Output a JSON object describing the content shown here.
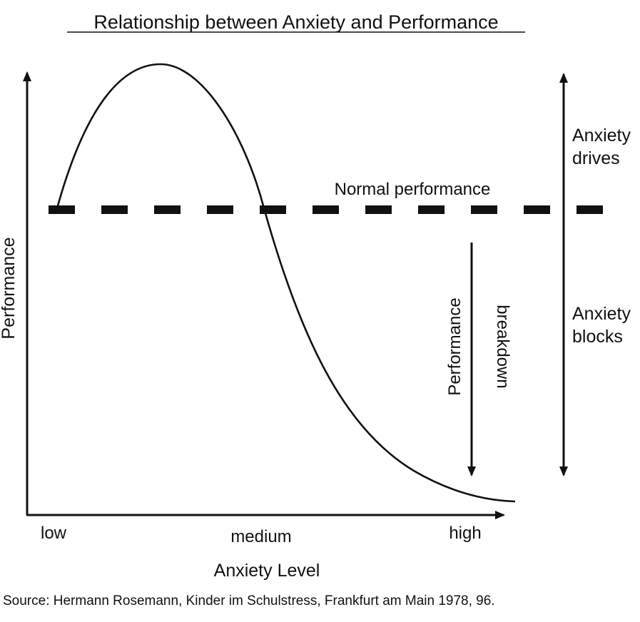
{
  "title": "Relationship between Anxiety and Performance",
  "y_axis_label": "Performance",
  "x_axis_label": "Anxiety Level",
  "x_ticks": [
    "low",
    "medium",
    "high"
  ],
  "normal_line_label": "Normal performance",
  "breakdown_label": [
    "Performance",
    "breakdown"
  ],
  "anxiety_drives_label": [
    "Anxiety",
    "drives"
  ],
  "anxiety_blocks_label": [
    "Anxiety",
    "blocks"
  ],
  "source": "Source: Hermann Rosemann, Kinder im Schulstress, Frankfurt am Main 1978, 96.",
  "colors": {
    "ink": "#111111",
    "background": "#ffffff"
  }
}
